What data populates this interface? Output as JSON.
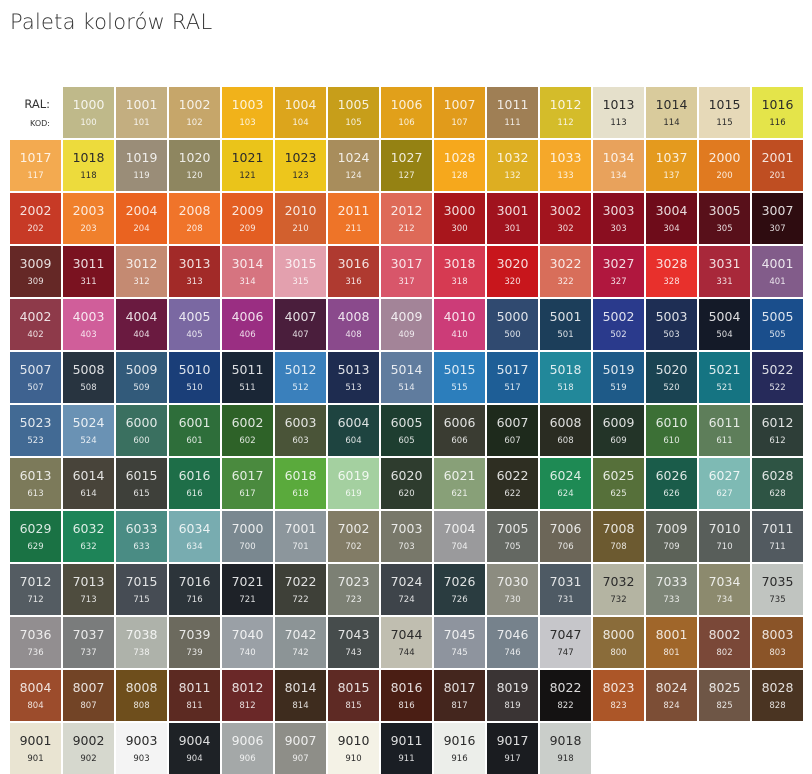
{
  "title": "Paleta kolorów RAL",
  "header": {
    "ral_label": "RAL:",
    "code_label": "KOD:"
  },
  "rows": [
    [
      [
        "1000",
        "100",
        "#BFB98A",
        0
      ],
      [
        "1001",
        "101",
        "#C3AE80",
        0
      ],
      [
        "1002",
        "102",
        "#C6A66A",
        0
      ],
      [
        "1003",
        "103",
        "#F1B21A",
        0
      ],
      [
        "1004",
        "104",
        "#DCA51C",
        0
      ],
      [
        "1005",
        "105",
        "#C79E1A",
        0
      ],
      [
        "1006",
        "106",
        "#E1A01A",
        0
      ],
      [
        "1007",
        "107",
        "#E19B1B",
        0
      ],
      [
        "1011",
        "111",
        "#9F7F55",
        0
      ],
      [
        "1012",
        "112",
        "#D4BC2A",
        0
      ],
      [
        "1013",
        "113",
        "#E5E0CB",
        1
      ],
      [
        "1014",
        "114",
        "#D9CB9C",
        1
      ],
      [
        "1015",
        "115",
        "#E6D9B8",
        1
      ],
      [
        "1016",
        "116",
        "#E4E44A",
        1
      ]
    ],
    [
      [
        "1017",
        "117",
        "#F3AA50",
        0
      ],
      [
        "1018",
        "118",
        "#EDDB3C",
        1
      ],
      [
        "1019",
        "119",
        "#9A8D78",
        0
      ],
      [
        "1020",
        "120",
        "#8E8660",
        0
      ],
      [
        "1021",
        "121",
        "#EAC41A",
        1
      ],
      [
        "1023",
        "123",
        "#EDC61C",
        1
      ],
      [
        "1024",
        "124",
        "#A88D5C",
        0
      ],
      [
        "1027",
        "127",
        "#958213",
        0
      ],
      [
        "1028",
        "128",
        "#F6A81C",
        0
      ],
      [
        "1032",
        "132",
        "#DDAE22",
        0
      ],
      [
        "1033",
        "133",
        "#F5A82A",
        0
      ],
      [
        "1034",
        "134",
        "#E8A25C",
        0
      ],
      [
        "1037",
        "137",
        "#E49A1E",
        0
      ],
      [
        "2000",
        "200",
        "#E07A20",
        0
      ],
      [
        "2001",
        "201",
        "#BF4E22",
        0
      ]
    ],
    [
      [
        "2002",
        "202",
        "#C73A26",
        0
      ],
      [
        "2003",
        "203",
        "#F0802C",
        0
      ],
      [
        "2004",
        "204",
        "#EA6320",
        0
      ],
      [
        "2008",
        "208",
        "#F0742A",
        0
      ],
      [
        "2009",
        "209",
        "#E35E22",
        0
      ],
      [
        "2010",
        "210",
        "#D2602E",
        0
      ],
      [
        "2011",
        "211",
        "#EE7428",
        0
      ],
      [
        "2012",
        "212",
        "#DE6A58",
        0
      ],
      [
        "3000",
        "300",
        "#A8161C",
        0
      ],
      [
        "3001",
        "301",
        "#A0131E",
        0
      ],
      [
        "3002",
        "302",
        "#A2141E",
        0
      ],
      [
        "3003",
        "303",
        "#8A0E20",
        0
      ],
      [
        "3004",
        "304",
        "#6E0C1A",
        0
      ],
      [
        "3005",
        "305",
        "#58101A",
        0
      ],
      [
        "3007",
        "307",
        "#2E0C10",
        0
      ]
    ],
    [
      [
        "3009",
        "309",
        "#652826",
        0
      ],
      [
        "3011",
        "311",
        "#7A1220",
        0
      ],
      [
        "3012",
        "312",
        "#C48A72",
        0
      ],
      [
        "3013",
        "313",
        "#A22A28",
        0
      ],
      [
        "3014",
        "314",
        "#D67480",
        0
      ],
      [
        "3015",
        "315",
        "#E3A0AE",
        0
      ],
      [
        "3016",
        "316",
        "#AF3A30",
        0
      ],
      [
        "3017",
        "317",
        "#D8566A",
        0
      ],
      [
        "3018",
        "318",
        "#D63A52",
        0
      ],
      [
        "3020",
        "320",
        "#C8161C",
        0
      ],
      [
        "3022",
        "322",
        "#D86E5A",
        0
      ],
      [
        "3027",
        "327",
        "#B0173E",
        0
      ],
      [
        "3028",
        "328",
        "#E8302C",
        0
      ],
      [
        "3031",
        "331",
        "#A8283A",
        0
      ],
      [
        "4001",
        "401",
        "#825C8A",
        0
      ]
    ],
    [
      [
        "4002",
        "402",
        "#8E3A4A",
        0
      ],
      [
        "4003",
        "403",
        "#D05E9A",
        0
      ],
      [
        "4004",
        "404",
        "#6A1A40",
        0
      ],
      [
        "4005",
        "405",
        "#7A68A2",
        0
      ],
      [
        "4006",
        "406",
        "#9A2E82",
        0
      ],
      [
        "4007",
        "407",
        "#4A1E3C",
        0
      ],
      [
        "4008",
        "408",
        "#8A4A8C",
        0
      ],
      [
        "4009",
        "409",
        "#A38498",
        0
      ],
      [
        "4010",
        "410",
        "#CC3C78",
        0
      ],
      [
        "5000",
        "500",
        "#304A70",
        0
      ],
      [
        "5001",
        "501",
        "#1C3E5A",
        0
      ],
      [
        "5002",
        "502",
        "#2A3A8C",
        0
      ],
      [
        "5003",
        "503",
        "#1E2E54",
        0
      ],
      [
        "5004",
        "504",
        "#141A28",
        0
      ],
      [
        "5005",
        "505",
        "#1A4E8C",
        0
      ]
    ],
    [
      [
        "5007",
        "507",
        "#3E6290",
        0
      ],
      [
        "5008",
        "508",
        "#283440",
        0
      ],
      [
        "5009",
        "509",
        "#325A7A",
        0
      ],
      [
        "5010",
        "510",
        "#1A3E78",
        0
      ],
      [
        "5011",
        "511",
        "#1A2636",
        0
      ],
      [
        "5012",
        "512",
        "#3A80BC",
        0
      ],
      [
        "5013",
        "513",
        "#1E2C50",
        0
      ],
      [
        "5014",
        "514",
        "#607C9E",
        0
      ],
      [
        "5015",
        "515",
        "#2C7EBC",
        0
      ],
      [
        "5017",
        "517",
        "#1E5E96",
        0
      ],
      [
        "5018",
        "518",
        "#22889A",
        0
      ],
      [
        "5019",
        "519",
        "#1E5A88",
        0
      ],
      [
        "5020",
        "520",
        "#1A4352",
        0
      ],
      [
        "5021",
        "521",
        "#157482",
        0
      ],
      [
        "5022",
        "522",
        "#262A5A",
        0
      ]
    ],
    [
      [
        "5023",
        "523",
        "#426A94",
        0
      ],
      [
        "5024",
        "524",
        "#6A92B4",
        0
      ],
      [
        "6000",
        "600",
        "#3A7060",
        0
      ],
      [
        "6001",
        "601",
        "#2E6E3A",
        0
      ],
      [
        "6002",
        "602",
        "#2E6228",
        0
      ],
      [
        "6003",
        "603",
        "#4A5438",
        0
      ],
      [
        "6004",
        "604",
        "#1E4440",
        0
      ],
      [
        "6005",
        "605",
        "#1E3E30",
        0
      ],
      [
        "6006",
        "606",
        "#3A3C32",
        0
      ],
      [
        "6007",
        "607",
        "#1E2A1C",
        0
      ],
      [
        "6008",
        "608",
        "#2A2C22",
        0
      ],
      [
        "6009",
        "609",
        "#233428",
        0
      ],
      [
        "6010",
        "610",
        "#3C7036",
        0
      ],
      [
        "6011",
        "611",
        "#5E7E5A",
        0
      ],
      [
        "6012",
        "612",
        "#2E3E38",
        0
      ]
    ],
    [
      [
        "6013",
        "613",
        "#7C7A5A",
        0
      ],
      [
        "6014",
        "614",
        "#48443A",
        0
      ],
      [
        "6015",
        "615",
        "#3E403A",
        0
      ],
      [
        "6016",
        "616",
        "#1E6E48",
        0
      ],
      [
        "6017",
        "617",
        "#4A8A3E",
        0
      ],
      [
        "6018",
        "618",
        "#5AAA3C",
        0
      ],
      [
        "6019",
        "619",
        "#A4D0A0",
        0
      ],
      [
        "6020",
        "620",
        "#2E3C2E",
        0
      ],
      [
        "6021",
        "621",
        "#88A078",
        0
      ],
      [
        "6022",
        "622",
        "#2E2E22",
        0
      ],
      [
        "6024",
        "624",
        "#1E8A54",
        0
      ],
      [
        "6025",
        "625",
        "#56703A",
        0
      ],
      [
        "6026",
        "626",
        "#1A5C4A",
        0
      ],
      [
        "6027",
        "627",
        "#7EBAB4",
        0
      ],
      [
        "6028",
        "628",
        "#2E5444",
        0
      ]
    ],
    [
      [
        "6029",
        "629",
        "#1A7244",
        0
      ],
      [
        "6032",
        "632",
        "#1E8458",
        0
      ],
      [
        "6033",
        "633",
        "#4A8C84",
        0
      ],
      [
        "6034",
        "634",
        "#78ACB0",
        0
      ],
      [
        "7000",
        "700",
        "#7A8890",
        0
      ],
      [
        "7001",
        "701",
        "#8C969C",
        0
      ],
      [
        "7002",
        "702",
        "#827C66",
        0
      ],
      [
        "7003",
        "703",
        "#78786A",
        0
      ],
      [
        "7004",
        "704",
        "#9A9A9C",
        0
      ],
      [
        "7005",
        "705",
        "#646862",
        0
      ],
      [
        "7006",
        "706",
        "#6C6658",
        0
      ],
      [
        "7008",
        "708",
        "#6C5A30",
        0
      ],
      [
        "7009",
        "709",
        "#5C6258",
        0
      ],
      [
        "7010",
        "710",
        "#585E5A",
        0
      ],
      [
        "7011",
        "711",
        "#525A60",
        0
      ]
    ],
    [
      [
        "7012",
        "712",
        "#545C62",
        0
      ],
      [
        "7013",
        "713",
        "#4E4C3E",
        0
      ],
      [
        "7015",
        "715",
        "#464C54",
        0
      ],
      [
        "7016",
        "716",
        "#2C343A",
        0
      ],
      [
        "7021",
        "721",
        "#1E2228",
        0
      ],
      [
        "7022",
        "722",
        "#3E4038",
        0
      ],
      [
        "7023",
        "723",
        "#7C8074",
        0
      ],
      [
        "7024",
        "724",
        "#3E444A",
        0
      ],
      [
        "7026",
        "726",
        "#2A3C40",
        0
      ],
      [
        "7030",
        "730",
        "#8C8C80",
        0
      ],
      [
        "7031",
        "731",
        "#4E5A64",
        0
      ],
      [
        "7032",
        "732",
        "#B4B4A2",
        1
      ],
      [
        "7033",
        "733",
        "#7C8476",
        0
      ],
      [
        "7034",
        "734",
        "#8C8A6E",
        0
      ],
      [
        "7035",
        "735",
        "#C0C4C0",
        1
      ]
    ],
    [
      [
        "7036",
        "736",
        "#928E90",
        0
      ],
      [
        "7037",
        "737",
        "#7A7C7C",
        0
      ],
      [
        "7038",
        "738",
        "#AEB2AA",
        0
      ],
      [
        "7039",
        "739",
        "#6C6A5E",
        0
      ],
      [
        "7040",
        "740",
        "#9AA0A6",
        0
      ],
      [
        "7042",
        "742",
        "#8C9496",
        0
      ],
      [
        "7043",
        "743",
        "#464C4C",
        0
      ],
      [
        "7044",
        "744",
        "#C0BEB0",
        1
      ],
      [
        "7045",
        "745",
        "#8E949E",
        0
      ],
      [
        "7046",
        "746",
        "#76828C",
        0
      ],
      [
        "7047",
        "747",
        "#C6C6CA",
        1
      ],
      [
        "8000",
        "800",
        "#8A6C3A",
        0
      ],
      [
        "8001",
        "801",
        "#A0662A",
        0
      ],
      [
        "8002",
        "802",
        "#7A4838",
        0
      ],
      [
        "8003",
        "803",
        "#8A5428",
        0
      ]
    ],
    [
      [
        "8004",
        "804",
        "#9C4C2C",
        0
      ],
      [
        "8007",
        "807",
        "#724426",
        0
      ],
      [
        "8008",
        "808",
        "#6E4E1C",
        0
      ],
      [
        "8011",
        "811",
        "#5C2A22",
        0
      ],
      [
        "8012",
        "812",
        "#6A2828",
        0
      ],
      [
        "8014",
        "814",
        "#3E2C1E",
        0
      ],
      [
        "8015",
        "815",
        "#5E2A24",
        0
      ],
      [
        "8016",
        "816",
        "#4A1E14",
        0
      ],
      [
        "8017",
        "817",
        "#44261E",
        0
      ],
      [
        "8019",
        "819",
        "#3A3434",
        0
      ],
      [
        "8022",
        "822",
        "#141212",
        0
      ],
      [
        "8023",
        "823",
        "#AC5628",
        0
      ],
      [
        "8024",
        "824",
        "#7C4E36",
        0
      ],
      [
        "8025",
        "825",
        "#6E5646",
        0
      ],
      [
        "8028",
        "828",
        "#4A3422",
        0
      ]
    ],
    [
      [
        "9001",
        "901",
        "#E9E4D2",
        1
      ],
      [
        "9002",
        "902",
        "#D6D8CE",
        1
      ],
      [
        "9003",
        "903",
        "#F4F4F4",
        1
      ],
      [
        "9004",
        "904",
        "#1E2226",
        0
      ],
      [
        "9006",
        "906",
        "#A4A8A8",
        0
      ],
      [
        "9007",
        "907",
        "#8E8E88",
        0
      ],
      [
        "9010",
        "910",
        "#F4F2E6",
        1
      ],
      [
        "9011",
        "911",
        "#1A1E24",
        0
      ],
      [
        "9016",
        "916",
        "#ECEEEA",
        1
      ],
      [
        "9017",
        "917",
        "#1A1C20",
        0
      ],
      [
        "9018",
        "918",
        "#CACECA",
        1
      ]
    ]
  ]
}
